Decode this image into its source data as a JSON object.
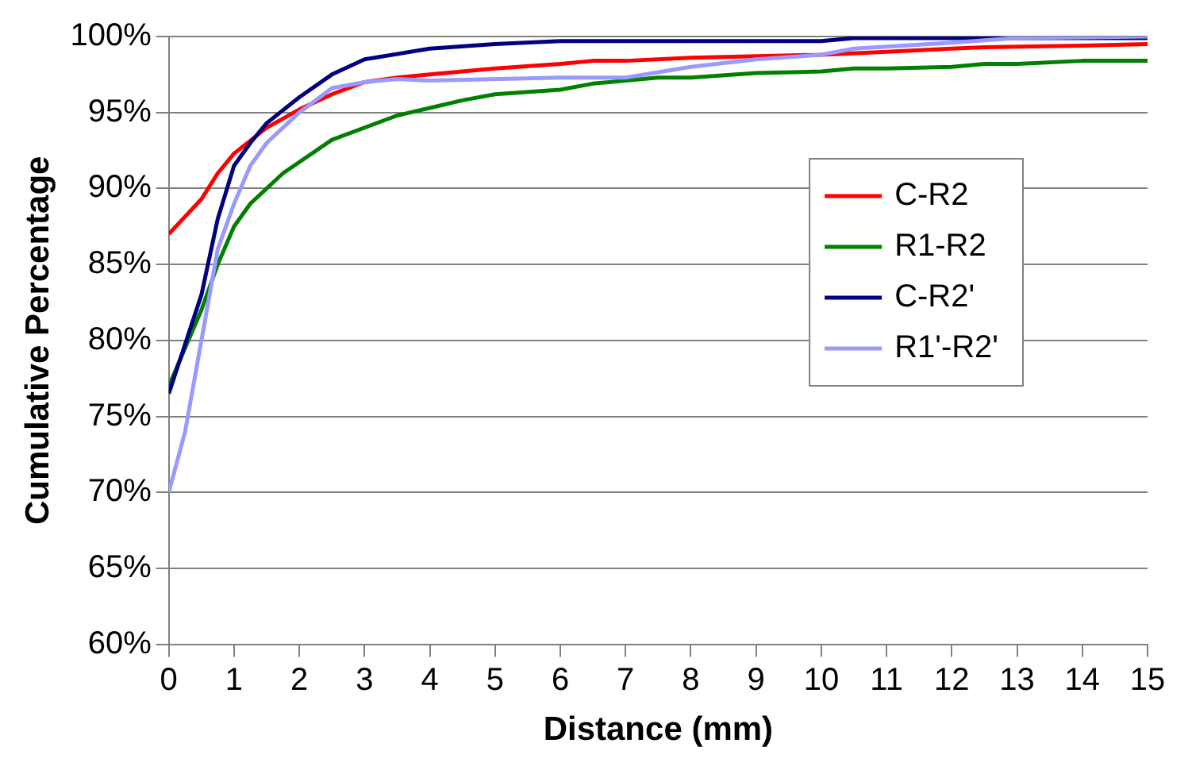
{
  "chart_data": {
    "type": "line",
    "xlabel": "Distance (mm)",
    "ylabel": "Cumulative Percentage",
    "xlim": [
      0,
      15
    ],
    "xticks": [
      0,
      1,
      2,
      3,
      4,
      5,
      6,
      7,
      8,
      9,
      10,
      11,
      12,
      13,
      14,
      15
    ],
    "ylim": [
      60,
      100
    ],
    "yticks": [
      {
        "value": 60,
        "label": "60%"
      },
      {
        "value": 65,
        "label": "65%"
      },
      {
        "value": 70,
        "label": "70%"
      },
      {
        "value": 75,
        "label": "75%"
      },
      {
        "value": 80,
        "label": "80%"
      },
      {
        "value": 85,
        "label": "85%"
      },
      {
        "value": 90,
        "label": "90%"
      },
      {
        "value": 95,
        "label": "95%"
      },
      {
        "value": 100,
        "label": "100%"
      }
    ],
    "grid": "y",
    "legend": "right",
    "marker": "none",
    "line_style": "solid",
    "series": [
      {
        "name": "C-R2",
        "color": "#ff0000",
        "x": [
          0,
          0.5,
          0.75,
          1,
          1.5,
          2,
          2.5,
          3,
          3.5,
          4,
          5,
          6,
          6.5,
          7,
          8,
          10,
          11,
          12,
          12.5,
          14,
          15
        ],
        "values": [
          87,
          89.3,
          91,
          92.3,
          94,
          95.2,
          96.2,
          97,
          97.3,
          97.5,
          97.9,
          98.2,
          98.4,
          98.4,
          98.6,
          98.8,
          99,
          99.2,
          99.3,
          99.4,
          99.5
        ]
      },
      {
        "name": "R1-R2",
        "color": "#008000",
        "x": [
          0,
          0.5,
          0.75,
          1,
          1.25,
          1.75,
          2.5,
          3.5,
          4,
          4.5,
          5,
          6,
          6.5,
          7,
          7.5,
          8,
          9,
          10,
          10.5,
          11,
          12,
          12.5,
          13,
          14,
          15
        ],
        "values": [
          77,
          82,
          85,
          87.5,
          89,
          91,
          93.2,
          94.8,
          95.3,
          95.8,
          96.2,
          96.5,
          96.9,
          97.1,
          97.3,
          97.3,
          97.6,
          97.7,
          97.9,
          97.9,
          98,
          98.2,
          98.2,
          98.4,
          98.4
        ]
      },
      {
        "name": "C-R2'",
        "color": "#000080",
        "x": [
          0,
          0.5,
          0.75,
          1,
          1.25,
          1.5,
          2,
          2.5,
          3,
          4,
          5,
          6,
          10,
          10.5,
          15
        ],
        "values": [
          76.5,
          83,
          88,
          91.5,
          93,
          94.3,
          96,
          97.5,
          98.5,
          99.2,
          99.5,
          99.7,
          99.7,
          99.9,
          99.9
        ]
      },
      {
        "name": "R1'-R2'",
        "color": "#9999ff",
        "x": [
          0,
          0.25,
          0.5,
          0.75,
          1,
          1.25,
          1.5,
          2,
          2.5,
          3,
          3.5,
          4,
          6,
          7,
          8,
          9,
          10,
          10.5,
          12,
          13,
          15
        ],
        "values": [
          70,
          74,
          80,
          86,
          89,
          91.5,
          93,
          95,
          96.6,
          97,
          97.2,
          97.1,
          97.3,
          97.3,
          98,
          98.5,
          98.8,
          99.2,
          99.6,
          99.9,
          100
        ]
      }
    ]
  }
}
